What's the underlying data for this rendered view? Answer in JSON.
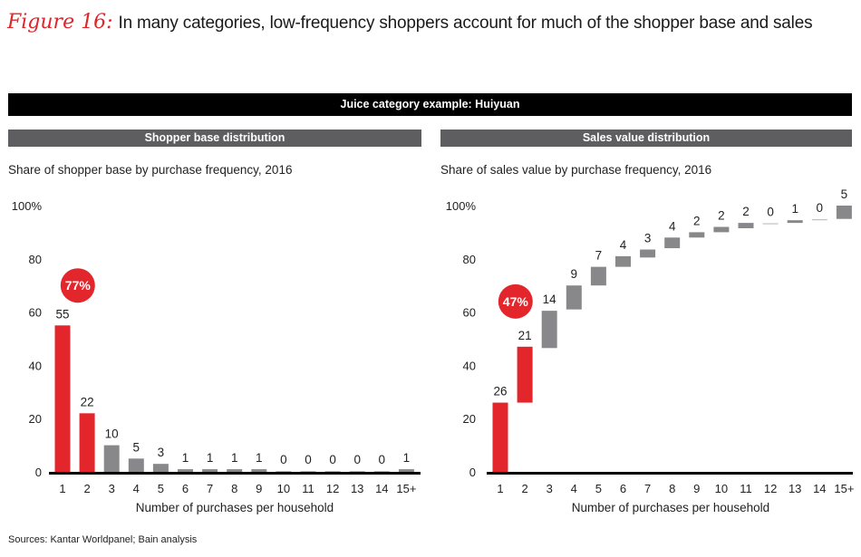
{
  "figure": {
    "label": "Figure 16:",
    "title": "In many categories, low-frequency shoppers account for much of the shopper base and sales"
  },
  "banner": "Juice category example: Huiyuan",
  "sources": "Sources: Kantar Worldpanel; Bain analysis",
  "colors": {
    "highlight": "#e3262b",
    "neutral": "#88888b",
    "axis": "#000000",
    "header": "#5e5e60"
  },
  "chart_data": [
    {
      "type": "bar",
      "panel_title": "Shopper base distribution",
      "title": "Share of shopper base by purchase frequency, 2016",
      "xlabel": "Number of purchases per household",
      "ylabel": "",
      "ylim": [
        0,
        100
      ],
      "yticks": [
        "0",
        "20",
        "40",
        "60",
        "80",
        "100%"
      ],
      "ytick_values": [
        0,
        20,
        40,
        60,
        80,
        100
      ],
      "categories": [
        "1",
        "2",
        "3",
        "4",
        "5",
        "6",
        "7",
        "8",
        "9",
        "10",
        "11",
        "12",
        "13",
        "14",
        "15+"
      ],
      "values": [
        55,
        22,
        10,
        5,
        3,
        1,
        1,
        1,
        1,
        0,
        0,
        0,
        0,
        0,
        1
      ],
      "highlight": [
        true,
        true,
        false,
        false,
        false,
        false,
        false,
        false,
        false,
        false,
        false,
        false,
        false,
        false,
        false
      ],
      "callout": {
        "text": "77%",
        "value": 70
      },
      "grid": false
    },
    {
      "type": "waterfall",
      "panel_title": "Sales value distribution",
      "title": "Share of sales value by purchase frequency, 2016",
      "xlabel": "Number of purchases per household",
      "ylabel": "",
      "ylim": [
        0,
        100
      ],
      "yticks": [
        "0",
        "20",
        "40",
        "60",
        "80",
        "100%"
      ],
      "ytick_values": [
        0,
        20,
        40,
        60,
        80,
        100
      ],
      "categories": [
        "1",
        "2",
        "3",
        "4",
        "5",
        "6",
        "7",
        "8",
        "9",
        "10",
        "11",
        "12",
        "13",
        "14",
        "15+"
      ],
      "values": [
        26,
        21,
        14,
        9,
        7,
        4,
        3,
        4,
        2,
        2,
        2,
        0,
        1,
        0,
        5
      ],
      "bar_bottoms": [
        0,
        26,
        46.5,
        61,
        70,
        77,
        80.5,
        84,
        88,
        90,
        91.5,
        93,
        93.5,
        94.5,
        95
      ],
      "highlight": [
        true,
        true,
        false,
        false,
        false,
        false,
        false,
        false,
        false,
        false,
        false,
        false,
        false,
        false,
        false
      ],
      "callout": {
        "text": "47%",
        "value": 64
      },
      "grid": false
    }
  ]
}
